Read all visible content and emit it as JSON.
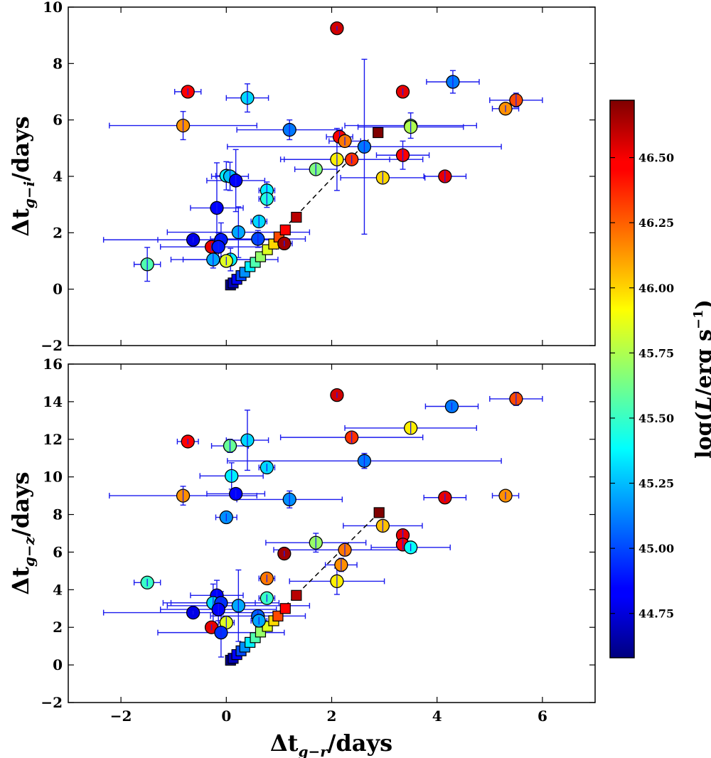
{
  "chart_data": {
    "type": "scatter",
    "shared_x": {
      "label_prefix": "Δt",
      "label_sub": "g−r",
      "label_suffix": "/days",
      "xlim": [
        -3,
        7
      ],
      "ticks": [
        -2,
        0,
        2,
        4,
        6
      ],
      "tick_labels": [
        "−2",
        "0",
        "2",
        "4",
        "6"
      ]
    },
    "colorbar": {
      "label": "log(L/erg s⁻¹)",
      "label_parts": {
        "pre": "log(",
        "L": "L",
        "mid": "/erg s",
        "sup": "−1",
        "post": ")"
      },
      "range": [
        44.58,
        46.72
      ],
      "ticks": [
        44.75,
        45.0,
        45.25,
        45.5,
        45.75,
        46.0,
        46.25,
        46.5
      ],
      "tick_labels": [
        "44.75",
        "45.00",
        "45.25",
        "45.50",
        "45.75",
        "46.00",
        "46.25",
        "46.50"
      ]
    },
    "panels": [
      {
        "id": "top",
        "ylabel_prefix": "Δt",
        "ylabel_sub": "g−i",
        "ylabel_suffix": "/days",
        "ylim": [
          -2,
          10
        ],
        "yticks": [
          -2,
          0,
          2,
          4,
          6,
          8,
          10
        ],
        "ytick_labels": [
          "−2",
          "0",
          "2",
          "4",
          "6",
          "8",
          "10"
        ],
        "model_line": [
          [
            0.08,
            0.15
          ],
          [
            2.7,
            5.3
          ]
        ],
        "model_squares": [
          {
            "x": 0.08,
            "y": 0.15,
            "c": 44.6
          },
          {
            "x": 0.13,
            "y": 0.22,
            "c": 44.7
          },
          {
            "x": 0.2,
            "y": 0.35,
            "c": 44.85
          },
          {
            "x": 0.28,
            "y": 0.48,
            "c": 45.0
          },
          {
            "x": 0.35,
            "y": 0.6,
            "c": 45.15
          },
          {
            "x": 0.45,
            "y": 0.8,
            "c": 45.35
          },
          {
            "x": 0.55,
            "y": 0.95,
            "c": 45.55
          },
          {
            "x": 0.65,
            "y": 1.15,
            "c": 45.7
          },
          {
            "x": 0.78,
            "y": 1.4,
            "c": 45.85
          },
          {
            "x": 0.9,
            "y": 1.6,
            "c": 46.0
          },
          {
            "x": 1.0,
            "y": 1.85,
            "c": 46.3
          },
          {
            "x": 1.12,
            "y": 2.1,
            "c": 46.45
          },
          {
            "x": 1.33,
            "y": 2.55,
            "c": 46.6
          },
          {
            "x": 2.88,
            "y": 5.55,
            "c": 46.72
          }
        ],
        "points": [
          {
            "x": 2.1,
            "y": 9.25,
            "xerr": 0.1,
            "yerr": 0.08,
            "c": 46.55
          },
          {
            "x": -0.73,
            "y": 7.0,
            "xerr": 0.25,
            "yerr": 0.12,
            "c": 46.45
          },
          {
            "x": 0.4,
            "y": 6.78,
            "xerr": 0.4,
            "yerr": 0.5,
            "c": 45.3
          },
          {
            "x": 3.35,
            "y": 7.0,
            "xerr": 0.1,
            "yerr": 0.12,
            "c": 46.5
          },
          {
            "x": 4.3,
            "y": 7.35,
            "xerr": 0.5,
            "yerr": 0.4,
            "c": 45.1
          },
          {
            "x": 5.5,
            "y": 6.7,
            "xerr": 0.5,
            "yerr": 0.25,
            "c": 46.3
          },
          {
            "x": 5.3,
            "y": 6.4,
            "xerr": 0.25,
            "yerr": 0.12,
            "c": 46.15
          },
          {
            "x": -0.82,
            "y": 5.8,
            "xerr": 1.4,
            "yerr": 0.5,
            "c": 46.15
          },
          {
            "x": 1.2,
            "y": 5.65,
            "xerr": 1.0,
            "yerr": 0.35,
            "c": 45.1
          },
          {
            "x": 3.5,
            "y": 5.8,
            "xerr": 1.25,
            "yerr": 0.45,
            "c": 45.6
          },
          {
            "x": 3.5,
            "y": 5.75,
            "xerr": 1.0,
            "yerr": 0.2,
            "c": 45.75
          },
          {
            "x": 2.15,
            "y": 5.4,
            "xerr": 0.25,
            "yerr": 0.2,
            "c": 46.45
          },
          {
            "x": 2.25,
            "y": 5.25,
            "xerr": 0.3,
            "yerr": 0.15,
            "c": 46.2
          },
          {
            "x": 2.62,
            "y": 5.05,
            "xerr": 2.6,
            "yerr": 3.1,
            "c": 45.1
          },
          {
            "x": 2.1,
            "y": 4.6,
            "xerr": 1.0,
            "yerr": 1.1,
            "c": 45.95
          },
          {
            "x": 2.38,
            "y": 4.6,
            "xerr": 1.35,
            "yerr": 0.15,
            "c": 46.35
          },
          {
            "x": 3.35,
            "y": 4.75,
            "xerr": 0.5,
            "yerr": 0.5,
            "c": 46.45
          },
          {
            "x": 1.7,
            "y": 4.25,
            "xerr": 0.4,
            "yerr": 0.2,
            "c": 45.65
          },
          {
            "x": 2.97,
            "y": 3.95,
            "xerr": 0.8,
            "yerr": 0.2,
            "c": 46.0
          },
          {
            "x": 4.15,
            "y": 4.0,
            "xerr": 0.4,
            "yerr": 0.2,
            "c": 46.5
          },
          {
            "x": 0.0,
            "y": 4.02,
            "xerr": 0.2,
            "yerr": 0.5,
            "c": 45.35
          },
          {
            "x": 0.07,
            "y": 4.0,
            "xerr": 0.35,
            "yerr": 0.5,
            "c": 45.25
          },
          {
            "x": 0.18,
            "y": 3.85,
            "xerr": 0.55,
            "yerr": 1.1,
            "c": 44.85
          },
          {
            "x": 0.77,
            "y": 3.5,
            "xerr": 0.15,
            "yerr": 0.3,
            "c": 45.35
          },
          {
            "x": 0.77,
            "y": 3.2,
            "xerr": 0.15,
            "yerr": 0.3,
            "c": 45.45
          },
          {
            "x": -0.18,
            "y": 2.88,
            "xerr": 0.5,
            "yerr": 1.6,
            "c": 44.85
          },
          {
            "x": 0.62,
            "y": 2.4,
            "xerr": 0.15,
            "yerr": 0.2,
            "c": 45.3
          },
          {
            "x": 0.23,
            "y": 2.02,
            "xerr": 1.35,
            "yerr": 0.9,
            "c": 45.2
          },
          {
            "x": -0.63,
            "y": 1.75,
            "xerr": 1.7,
            "yerr": 0.1,
            "c": 44.8
          },
          {
            "x": -0.1,
            "y": 1.75,
            "xerr": 1.2,
            "yerr": 0.6,
            "c": 44.9
          },
          {
            "x": 0.6,
            "y": 1.78,
            "xerr": 0.9,
            "yerr": 0.3,
            "c": 45.0
          },
          {
            "x": -0.28,
            "y": 1.5,
            "xerr": 0.1,
            "yerr": 0.15,
            "c": 46.5
          },
          {
            "x": -0.15,
            "y": 1.5,
            "xerr": 1.1,
            "yerr": 0.5,
            "c": 44.9
          },
          {
            "x": 0.08,
            "y": 1.05,
            "xerr": 0.9,
            "yerr": 0.4,
            "c": 45.35
          },
          {
            "x": -0.25,
            "y": 1.05,
            "xerr": 0.8,
            "yerr": 0.3,
            "c": 45.2
          },
          {
            "x": 0.0,
            "y": 1.0,
            "xerr": 0.15,
            "yerr": 0.15,
            "c": 45.85
          },
          {
            "x": 1.1,
            "y": 1.62,
            "xerr": 0.15,
            "yerr": 0.1,
            "c": 46.65
          },
          {
            "x": -1.5,
            "y": 0.88,
            "xerr": 0.25,
            "yerr": 0.6,
            "c": 45.55
          }
        ]
      },
      {
        "id": "bottom",
        "ylabel_prefix": "Δt",
        "ylabel_sub": "g−z",
        "ylabel_suffix": "/days",
        "ylim": [
          -2,
          16
        ],
        "yticks": [
          -2,
          0,
          2,
          4,
          6,
          8,
          10,
          12,
          14,
          16
        ],
        "ytick_labels": [
          "−2",
          "0",
          "2",
          "4",
          "6",
          "8",
          "10",
          "12",
          "14",
          "16"
        ],
        "model_line": [
          [
            0.08,
            0.25
          ],
          [
            2.9,
            8.1
          ]
        ],
        "model_squares": [
          {
            "x": 0.08,
            "y": 0.25,
            "c": 44.6
          },
          {
            "x": 0.13,
            "y": 0.35,
            "c": 44.7
          },
          {
            "x": 0.2,
            "y": 0.55,
            "c": 44.85
          },
          {
            "x": 0.28,
            "y": 0.75,
            "c": 45.0
          },
          {
            "x": 0.35,
            "y": 0.95,
            "c": 45.15
          },
          {
            "x": 0.45,
            "y": 1.2,
            "c": 45.35
          },
          {
            "x": 0.55,
            "y": 1.45,
            "c": 45.55
          },
          {
            "x": 0.65,
            "y": 1.75,
            "c": 45.7
          },
          {
            "x": 0.78,
            "y": 2.05,
            "c": 45.85
          },
          {
            "x": 0.9,
            "y": 2.35,
            "c": 46.0
          },
          {
            "x": 0.98,
            "y": 2.6,
            "c": 46.3
          },
          {
            "x": 1.12,
            "y": 3.0,
            "c": 46.45
          },
          {
            "x": 1.33,
            "y": 3.7,
            "c": 46.6
          },
          {
            "x": 2.9,
            "y": 8.1,
            "c": 46.72
          }
        ],
        "points": [
          {
            "x": 2.1,
            "y": 14.35,
            "xerr": 0.1,
            "yerr": 0.15,
            "c": 46.55
          },
          {
            "x": 4.28,
            "y": 13.75,
            "xerr": 0.5,
            "yerr": 0.2,
            "c": 45.1
          },
          {
            "x": 5.5,
            "y": 14.15,
            "xerr": 0.5,
            "yerr": 0.35,
            "c": 46.3
          },
          {
            "x": 3.5,
            "y": 12.6,
            "xerr": 1.25,
            "yerr": 0.3,
            "c": 45.95
          },
          {
            "x": 2.38,
            "y": 12.1,
            "xerr": 1.35,
            "yerr": 0.3,
            "c": 46.35
          },
          {
            "x": -0.73,
            "y": 11.88,
            "xerr": 0.2,
            "yerr": 0.15,
            "c": 46.45
          },
          {
            "x": 0.4,
            "y": 11.95,
            "xerr": 0.4,
            "yerr": 1.6,
            "c": 45.3
          },
          {
            "x": 0.07,
            "y": 11.65,
            "xerr": 0.35,
            "yerr": 0.35,
            "c": 45.6
          },
          {
            "x": 2.62,
            "y": 10.85,
            "xerr": 2.6,
            "yerr": 0.4,
            "c": 45.1
          },
          {
            "x": 0.77,
            "y": 10.5,
            "xerr": 0.15,
            "yerr": 0.2,
            "c": 45.3
          },
          {
            "x": 0.1,
            "y": 10.05,
            "xerr": 0.6,
            "yerr": 0.7,
            "c": 45.35
          },
          {
            "x": -0.82,
            "y": 9.0,
            "xerr": 1.4,
            "yerr": 0.5,
            "c": 46.15
          },
          {
            "x": 0.18,
            "y": 9.1,
            "xerr": 0.55,
            "yerr": 0.2,
            "c": 44.85
          },
          {
            "x": 1.2,
            "y": 8.8,
            "xerr": 1.0,
            "yerr": 0.45,
            "c": 45.15
          },
          {
            "x": 4.15,
            "y": 8.9,
            "xerr": 0.4,
            "yerr": 0.2,
            "c": 46.5
          },
          {
            "x": 5.3,
            "y": 9.0,
            "xerr": 0.25,
            "yerr": 0.2,
            "c": 46.15
          },
          {
            "x": 0.0,
            "y": 7.85,
            "xerr": 0.2,
            "yerr": 0.2,
            "c": 45.15
          },
          {
            "x": 2.97,
            "y": 7.4,
            "xerr": 0.75,
            "yerr": 0.3,
            "c": 46.05
          },
          {
            "x": 3.35,
            "y": 6.9,
            "xerr": 0.1,
            "yerr": 0.3,
            "c": 46.5
          },
          {
            "x": 3.35,
            "y": 6.4,
            "xerr": 0.12,
            "yerr": 0.3,
            "c": 46.45
          },
          {
            "x": 3.5,
            "y": 6.25,
            "xerr": 0.75,
            "yerr": 0.2,
            "c": 45.4
          },
          {
            "x": 1.7,
            "y": 6.5,
            "xerr": 0.95,
            "yerr": 0.5,
            "c": 45.7
          },
          {
            "x": 2.25,
            "y": 6.12,
            "xerr": 1.35,
            "yerr": 0.3,
            "c": 46.2
          },
          {
            "x": 1.1,
            "y": 5.92,
            "xerr": 0.1,
            "yerr": 0.15,
            "c": 46.65
          },
          {
            "x": 2.18,
            "y": 5.32,
            "xerr": 0.3,
            "yerr": 0.35,
            "c": 46.15
          },
          {
            "x": 0.77,
            "y": 4.6,
            "xerr": 0.15,
            "yerr": 0.2,
            "c": 46.2
          },
          {
            "x": 2.1,
            "y": 4.45,
            "xerr": 0.9,
            "yerr": 0.7,
            "c": 45.95
          },
          {
            "x": -1.5,
            "y": 4.38,
            "xerr": 0.25,
            "yerr": 0.2,
            "c": 45.5
          },
          {
            "x": -0.18,
            "y": 3.7,
            "xerr": 0.5,
            "yerr": 0.8,
            "c": 44.85
          },
          {
            "x": 0.77,
            "y": 3.55,
            "xerr": 0.15,
            "yerr": 0.2,
            "c": 45.5
          },
          {
            "x": -0.25,
            "y": 3.3,
            "xerr": 0.8,
            "yerr": 1.0,
            "c": 45.3
          },
          {
            "x": -0.1,
            "y": 3.3,
            "xerr": 1.1,
            "yerr": 0.6,
            "c": 44.95
          },
          {
            "x": 0.23,
            "y": 3.15,
            "xerr": 1.35,
            "yerr": 1.9,
            "c": 45.2
          },
          {
            "x": -0.15,
            "y": 2.95,
            "xerr": 1.1,
            "yerr": 0.6,
            "c": 44.85
          },
          {
            "x": -0.63,
            "y": 2.78,
            "xerr": 1.7,
            "yerr": 0.1,
            "c": 44.8
          },
          {
            "x": 0.6,
            "y": 2.6,
            "xerr": 0.9,
            "yerr": 0.3,
            "c": 45.05
          },
          {
            "x": 0.62,
            "y": 2.35,
            "xerr": 0.15,
            "yerr": 0.2,
            "c": 45.2
          },
          {
            "x": 0.0,
            "y": 2.25,
            "xerr": 0.15,
            "yerr": 0.3,
            "c": 45.85
          },
          {
            "x": -0.28,
            "y": 2.0,
            "xerr": 0.1,
            "yerr": 0.15,
            "c": 46.5
          },
          {
            "x": -0.1,
            "y": 1.72,
            "xerr": 1.2,
            "yerr": 1.3,
            "c": 44.95
          }
        ]
      }
    ]
  }
}
